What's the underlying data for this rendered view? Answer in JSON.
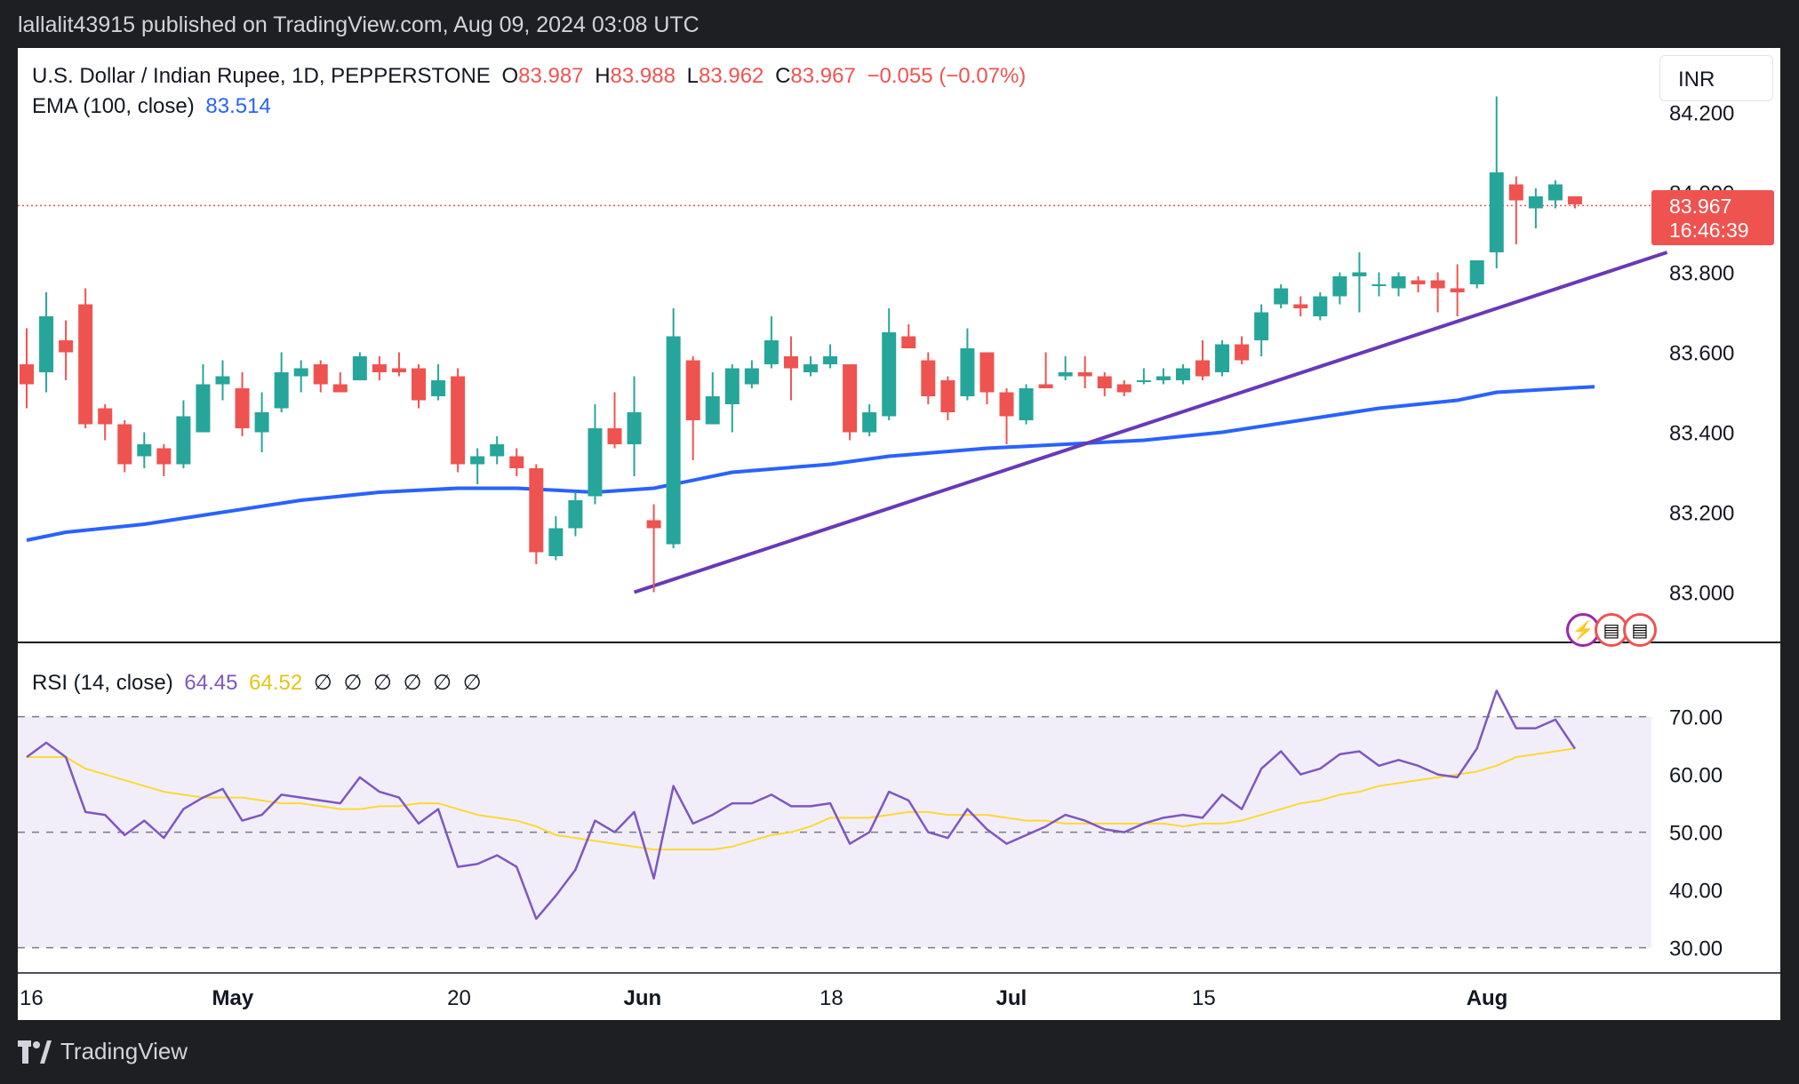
{
  "publish_bar": "lallalit43915 published on TradingView.com, Aug 09, 2024 03:08 UTC",
  "legend": {
    "symbol": "U.S. Dollar / Indian Rupee, 1D, PEPPERSTONE",
    "o_label": "O",
    "o_value": "83.987",
    "h_label": "H",
    "h_value": "83.988",
    "l_label": "L",
    "l_value": "83.962",
    "c_label": "C",
    "c_value": "83.967",
    "change": "−0.055 (−0.07%)",
    "ema_label": "EMA (100, close)",
    "ema_value": "83.514"
  },
  "rsi_legend": {
    "label": "RSI (14, close)",
    "rsi_value": "64.45",
    "ma_value": "64.52",
    "empty_markers": [
      "∅",
      "∅",
      "∅",
      "∅",
      "∅",
      "∅"
    ]
  },
  "currency": "INR",
  "price_tag": {
    "price": "83.967",
    "countdown": "16:46:39"
  },
  "brand": "TradingView",
  "colors": {
    "up": "#26a69a",
    "down": "#ef5350",
    "ema": "#2962ff",
    "trendline": "#673ab7",
    "rsi": "#7e57c2",
    "rsi_ma": "#fdd835",
    "rsi_band": "#7e57c2"
  },
  "chart_data": [
    {
      "type": "candlestick",
      "title": "U.S. Dollar / Indian Rupee, 1D, PEPPERSTONE",
      "y_ticks": [
        "84.200",
        "83.800",
        "83.600",
        "83.400",
        "83.200",
        "83.000"
      ],
      "ylim": [
        82.88,
        84.27
      ],
      "x_ticks": [
        {
          "label": "16",
          "index": 0
        },
        {
          "label": "May",
          "index": 10
        },
        {
          "label": "20",
          "index": 22
        },
        {
          "label": "Jun",
          "index": 31
        },
        {
          "label": "18",
          "index": 41
        },
        {
          "label": "Jul",
          "index": 50
        },
        {
          "label": "15",
          "index": 60
        },
        {
          "label": "Aug",
          "index": 74
        }
      ],
      "candles": [
        {
          "d": "Apr 16",
          "o": 83.57,
          "h": 83.66,
          "l": 83.46,
          "c": 83.52
        },
        {
          "d": "Apr 17",
          "o": 83.55,
          "h": 83.75,
          "l": 83.5,
          "c": 83.69
        },
        {
          "d": "Apr 18",
          "o": 83.63,
          "h": 83.68,
          "l": 83.53,
          "c": 83.6
        },
        {
          "d": "Apr 19",
          "o": 83.72,
          "h": 83.76,
          "l": 83.41,
          "c": 83.42
        },
        {
          "d": "Apr 22",
          "o": 83.46,
          "h": 83.47,
          "l": 83.38,
          "c": 83.42
        },
        {
          "d": "Apr 23",
          "o": 83.42,
          "h": 83.43,
          "l": 83.3,
          "c": 83.32
        },
        {
          "d": "Apr 24",
          "o": 83.34,
          "h": 83.4,
          "l": 83.31,
          "c": 83.37
        },
        {
          "d": "Apr 25",
          "o": 83.36,
          "h": 83.37,
          "l": 83.29,
          "c": 83.32
        },
        {
          "d": "Apr 26",
          "o": 83.32,
          "h": 83.48,
          "l": 83.31,
          "c": 83.44
        },
        {
          "d": "Apr 29",
          "o": 83.4,
          "h": 83.57,
          "l": 83.4,
          "c": 83.52
        },
        {
          "d": "Apr 30",
          "o": 83.52,
          "h": 83.58,
          "l": 83.48,
          "c": 83.54
        },
        {
          "d": "May 1",
          "o": 83.51,
          "h": 83.55,
          "l": 83.39,
          "c": 83.41
        },
        {
          "d": "May 2",
          "o": 83.4,
          "h": 83.5,
          "l": 83.35,
          "c": 83.45
        },
        {
          "d": "May 3",
          "o": 83.46,
          "h": 83.6,
          "l": 83.45,
          "c": 83.55
        },
        {
          "d": "May 6",
          "o": 83.54,
          "h": 83.58,
          "l": 83.5,
          "c": 83.56
        },
        {
          "d": "May 7",
          "o": 83.57,
          "h": 83.58,
          "l": 83.5,
          "c": 83.52
        },
        {
          "d": "May 8",
          "o": 83.52,
          "h": 83.55,
          "l": 83.5,
          "c": 83.5
        },
        {
          "d": "May 9",
          "o": 83.53,
          "h": 83.6,
          "l": 83.53,
          "c": 83.59
        },
        {
          "d": "May 10",
          "o": 83.57,
          "h": 83.59,
          "l": 83.53,
          "c": 83.55
        },
        {
          "d": "May 13",
          "o": 83.56,
          "h": 83.6,
          "l": 83.54,
          "c": 83.55
        },
        {
          "d": "May 14",
          "o": 83.56,
          "h": 83.57,
          "l": 83.46,
          "c": 83.48
        },
        {
          "d": "May 15",
          "o": 83.49,
          "h": 83.57,
          "l": 83.48,
          "c": 83.53
        },
        {
          "d": "May 16",
          "o": 83.54,
          "h": 83.56,
          "l": 83.3,
          "c": 83.32
        },
        {
          "d": "May 17",
          "o": 83.32,
          "h": 83.36,
          "l": 83.27,
          "c": 83.34
        },
        {
          "d": "May 20",
          "o": 83.34,
          "h": 83.39,
          "l": 83.32,
          "c": 83.37
        },
        {
          "d": "May 21",
          "o": 83.34,
          "h": 83.36,
          "l": 83.29,
          "c": 83.31
        },
        {
          "d": "May 22",
          "o": 83.31,
          "h": 83.32,
          "l": 83.07,
          "c": 83.1
        },
        {
          "d": "May 23",
          "o": 83.09,
          "h": 83.19,
          "l": 83.08,
          "c": 83.16
        },
        {
          "d": "May 24",
          "o": 83.16,
          "h": 83.25,
          "l": 83.14,
          "c": 83.23
        },
        {
          "d": "May 27",
          "o": 83.24,
          "h": 83.47,
          "l": 83.22,
          "c": 83.41
        },
        {
          "d": "May 28",
          "o": 83.41,
          "h": 83.5,
          "l": 83.36,
          "c": 83.37
        },
        {
          "d": "May 29",
          "o": 83.37,
          "h": 83.54,
          "l": 83.29,
          "c": 83.45
        },
        {
          "d": "May 31",
          "o": 83.18,
          "h": 83.22,
          "l": 83.0,
          "c": 83.16
        },
        {
          "d": "Jun 3",
          "o": 83.12,
          "h": 83.71,
          "l": 83.11,
          "c": 83.64
        },
        {
          "d": "Jun 4",
          "o": 83.58,
          "h": 83.59,
          "l": 83.33,
          "c": 83.43
        },
        {
          "d": "Jun 5",
          "o": 83.42,
          "h": 83.55,
          "l": 83.42,
          "c": 83.49
        },
        {
          "d": "Jun 6",
          "o": 83.47,
          "h": 83.57,
          "l": 83.4,
          "c": 83.56
        },
        {
          "d": "Jun 7",
          "o": 83.52,
          "h": 83.58,
          "l": 83.51,
          "c": 83.56
        },
        {
          "d": "Jun 10",
          "o": 83.57,
          "h": 83.69,
          "l": 83.56,
          "c": 83.63
        },
        {
          "d": "Jun 11",
          "o": 83.59,
          "h": 83.64,
          "l": 83.48,
          "c": 83.56
        },
        {
          "d": "Jun 12",
          "o": 83.55,
          "h": 83.59,
          "l": 83.54,
          "c": 83.57
        },
        {
          "d": "Jun 13",
          "o": 83.57,
          "h": 83.62,
          "l": 83.56,
          "c": 83.59
        },
        {
          "d": "Jun 14",
          "o": 83.57,
          "h": 83.57,
          "l": 83.38,
          "c": 83.4
        },
        {
          "d": "Jun 17",
          "o": 83.4,
          "h": 83.47,
          "l": 83.39,
          "c": 83.45
        },
        {
          "d": "Jun 18",
          "o": 83.44,
          "h": 83.71,
          "l": 83.43,
          "c": 83.65
        },
        {
          "d": "Jun 19",
          "o": 83.64,
          "h": 83.67,
          "l": 83.61,
          "c": 83.61
        },
        {
          "d": "Jun 20",
          "o": 83.58,
          "h": 83.6,
          "l": 83.47,
          "c": 83.49
        },
        {
          "d": "Jun 21",
          "o": 83.53,
          "h": 83.54,
          "l": 83.43,
          "c": 83.45
        },
        {
          "d": "Jun 24",
          "o": 83.49,
          "h": 83.66,
          "l": 83.48,
          "c": 83.61
        },
        {
          "d": "Jun 25",
          "o": 83.6,
          "h": 83.6,
          "l": 83.47,
          "c": 83.5
        },
        {
          "d": "Jun 26",
          "o": 83.5,
          "h": 83.51,
          "l": 83.37,
          "c": 83.44
        },
        {
          "d": "Jun 27",
          "o": 83.43,
          "h": 83.52,
          "l": 83.42,
          "c": 83.51
        },
        {
          "d": "Jun 28",
          "o": 83.52,
          "h": 83.6,
          "l": 83.51,
          "c": 83.51
        },
        {
          "d": "Jul 1",
          "o": 83.54,
          "h": 83.59,
          "l": 83.53,
          "c": 83.55
        },
        {
          "d": "Jul 2",
          "o": 83.55,
          "h": 83.59,
          "l": 83.51,
          "c": 83.54
        },
        {
          "d": "Jul 3",
          "o": 83.54,
          "h": 83.55,
          "l": 83.49,
          "c": 83.51
        },
        {
          "d": "Jul 4",
          "o": 83.52,
          "h": 83.53,
          "l": 83.49,
          "c": 83.5
        },
        {
          "d": "Jul 5",
          "o": 83.53,
          "h": 83.56,
          "l": 83.52,
          "c": 83.53
        },
        {
          "d": "Jul 8",
          "o": 83.53,
          "h": 83.56,
          "l": 83.52,
          "c": 83.54
        },
        {
          "d": "Jul 9",
          "o": 83.53,
          "h": 83.57,
          "l": 83.52,
          "c": 83.56
        },
        {
          "d": "Jul 10",
          "o": 83.58,
          "h": 83.63,
          "l": 83.53,
          "c": 83.54
        },
        {
          "d": "Jul 11",
          "o": 83.55,
          "h": 83.63,
          "l": 83.54,
          "c": 83.62
        },
        {
          "d": "Jul 12",
          "o": 83.62,
          "h": 83.64,
          "l": 83.57,
          "c": 83.58
        },
        {
          "d": "Jul 15",
          "o": 83.63,
          "h": 83.72,
          "l": 83.59,
          "c": 83.7
        },
        {
          "d": "Jul 16",
          "o": 83.72,
          "h": 83.77,
          "l": 83.71,
          "c": 83.76
        },
        {
          "d": "Jul 17",
          "o": 83.72,
          "h": 83.74,
          "l": 83.69,
          "c": 83.71
        },
        {
          "d": "Jul 18",
          "o": 83.69,
          "h": 83.75,
          "l": 83.68,
          "c": 83.74
        },
        {
          "d": "Jul 19",
          "o": 83.74,
          "h": 83.8,
          "l": 83.72,
          "c": 83.79
        },
        {
          "d": "Jul 22",
          "o": 83.79,
          "h": 83.85,
          "l": 83.7,
          "c": 83.8
        },
        {
          "d": "Jul 23",
          "o": 83.77,
          "h": 83.8,
          "l": 83.74,
          "c": 83.77
        },
        {
          "d": "Jul 24",
          "o": 83.76,
          "h": 83.8,
          "l": 83.74,
          "c": 83.79
        },
        {
          "d": "Jul 25",
          "o": 83.78,
          "h": 83.79,
          "l": 83.75,
          "c": 83.77
        },
        {
          "d": "Jul 26",
          "o": 83.78,
          "h": 83.8,
          "l": 83.7,
          "c": 83.76
        },
        {
          "d": "Jul 29",
          "o": 83.76,
          "h": 83.82,
          "l": 83.69,
          "c": 83.75
        },
        {
          "d": "Jul 30",
          "o": 83.77,
          "h": 83.83,
          "l": 83.76,
          "c": 83.83
        },
        {
          "d": "Aug 1",
          "o": 83.85,
          "h": 84.24,
          "l": 83.81,
          "c": 84.05
        },
        {
          "d": "Aug 2",
          "o": 84.02,
          "h": 84.04,
          "l": 83.87,
          "c": 83.98
        },
        {
          "d": "Aug 5",
          "o": 83.96,
          "h": 84.01,
          "l": 83.91,
          "c": 83.99
        },
        {
          "d": "Aug 6",
          "o": 83.98,
          "h": 84.03,
          "l": 83.96,
          "c": 84.02
        },
        {
          "d": "Aug 7",
          "o": 83.99,
          "h": 83.99,
          "l": 83.96,
          "c": 83.97
        }
      ],
      "ema_100": {
        "name": "EMA (100, close)",
        "points": [
          [
            0,
            83.13
          ],
          [
            2,
            83.15
          ],
          [
            6,
            83.17
          ],
          [
            10,
            83.2
          ],
          [
            14,
            83.23
          ],
          [
            18,
            83.25
          ],
          [
            22,
            83.26
          ],
          [
            25,
            83.26
          ],
          [
            29,
            83.25
          ],
          [
            32,
            83.26
          ],
          [
            36,
            83.3
          ],
          [
            41,
            83.32
          ],
          [
            44,
            83.34
          ],
          [
            49,
            83.36
          ],
          [
            53,
            83.37
          ],
          [
            57,
            83.38
          ],
          [
            61,
            83.4
          ],
          [
            65,
            83.43
          ],
          [
            69,
            83.46
          ],
          [
            73,
            83.48
          ],
          [
            75,
            83.5
          ],
          [
            80,
            83.514
          ]
        ]
      },
      "trendline": {
        "start": [
          31,
          83.0
        ],
        "end": [
          83.7,
          83.85
        ]
      },
      "last_price": 83.967
    },
    {
      "type": "line",
      "title": "RSI (14, close)",
      "y_ticks": [
        "70.00",
        "60.00",
        "50.00",
        "40.00",
        "30.00"
      ],
      "ylim": [
        27,
        74
      ],
      "bands": {
        "upper": 70,
        "middle": 50,
        "lower": 30
      },
      "series": [
        {
          "name": "RSI",
          "values": [
            63,
            65.5,
            63,
            53.5,
            53,
            49.5,
            52,
            49,
            54,
            56,
            57.5,
            52,
            53,
            56.5,
            56,
            55.5,
            55,
            59.5,
            57,
            56,
            51.5,
            54,
            44,
            44.5,
            46,
            44,
            35,
            39,
            43.5,
            52,
            50,
            53.5,
            42,
            58,
            51.5,
            53,
            55,
            55,
            56.5,
            54.5,
            54.5,
            55,
            48,
            50,
            57,
            55.5,
            50,
            49,
            54,
            50.5,
            48,
            49.5,
            51,
            53,
            52,
            50.5,
            50,
            51.5,
            52.5,
            53,
            52.5,
            56.5,
            54,
            61,
            64,
            60,
            61,
            63.5,
            64,
            61.5,
            62.5,
            61.5,
            60,
            59.5,
            64.5,
            74.5,
            68,
            68,
            69.5,
            64.45
          ]
        },
        {
          "name": "RSI-based MA",
          "values": [
            63,
            63,
            63,
            61,
            60,
            59,
            58,
            57,
            56.5,
            56,
            56,
            56,
            55.5,
            55,
            55,
            54.5,
            54,
            54,
            54.5,
            54.5,
            55,
            55,
            54,
            53,
            52.5,
            52,
            51,
            49.5,
            49,
            48.5,
            48,
            47.5,
            47,
            47,
            47,
            47,
            47.5,
            48.5,
            49.5,
            50,
            51,
            52.5,
            52.5,
            52.5,
            53,
            53.5,
            53.5,
            53,
            53,
            53,
            52.5,
            52,
            52,
            51.5,
            51.5,
            51.5,
            51.5,
            51.5,
            51.5,
            51,
            51.5,
            51.5,
            52,
            53,
            54,
            55,
            55.5,
            56.5,
            57,
            58,
            58.5,
            59,
            59.5,
            60,
            60.5,
            61.5,
            63,
            63.5,
            64,
            64.52
          ]
        }
      ]
    }
  ]
}
